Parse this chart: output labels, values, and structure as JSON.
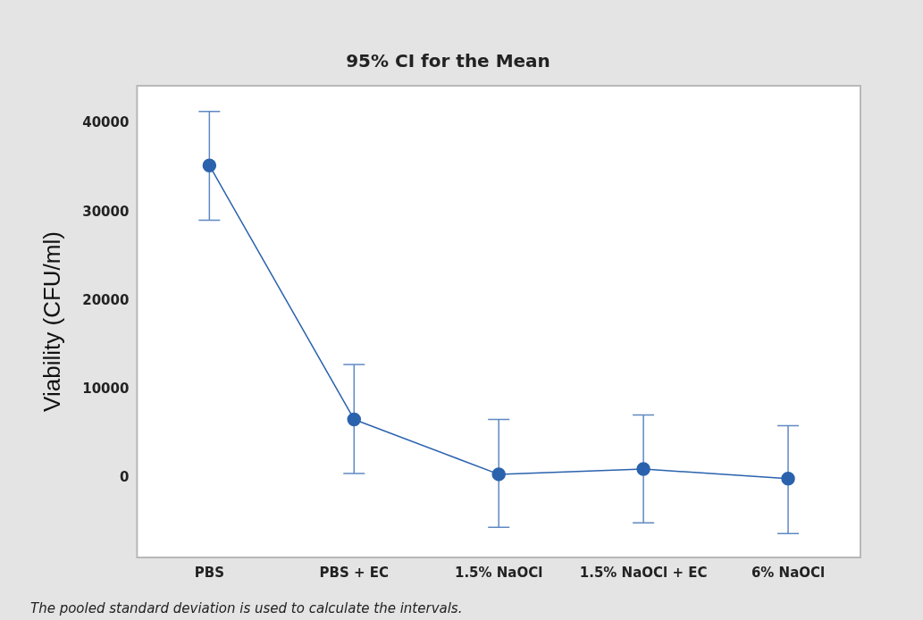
{
  "chart_data": {
    "type": "line",
    "title": "95% CI for the Mean",
    "ylabel": "Viability (CFU/ml)",
    "categories": [
      "PBS",
      "PBS + EC",
      "1.5% NaOCl",
      "1.5% NaOCl + EC",
      "6% NaOCl"
    ],
    "series": [
      {
        "color": "#2a62ad",
        "values": [
          35300,
          6600,
          400,
          1000,
          -100
        ],
        "errors": [
          [
            29100,
            41400
          ],
          [
            500,
            12800
          ],
          [
            -5600,
            6600
          ],
          [
            -5100,
            7100
          ],
          [
            -6300,
            5900
          ]
        ]
      }
    ],
    "ylim": [
      -9000,
      44300
    ],
    "yticks": [
      0,
      10000,
      20000,
      30000,
      40000
    ],
    "grid": false,
    "legend": false,
    "marker": "circle",
    "line_style": "solid",
    "annotations": [
      "The pooled standard deviation is used to calculate the intervals."
    ]
  }
}
